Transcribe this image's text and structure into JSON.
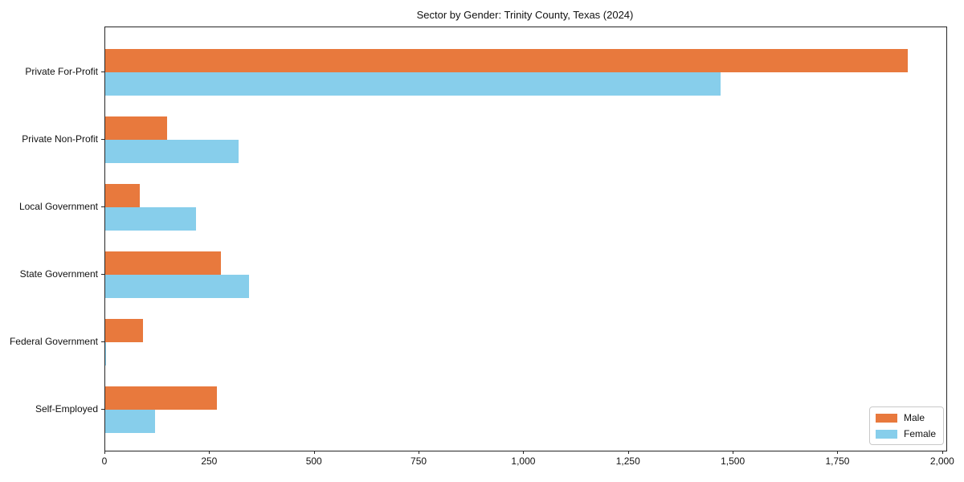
{
  "title": "Sector by Gender: Trinity County, Texas (2024)",
  "chart_data": {
    "type": "bar",
    "orientation": "horizontal",
    "title": "Sector by Gender: Trinity County, Texas (2024)",
    "categories": [
      "Private For-Profit",
      "Private Non-Profit",
      "Local Government",
      "State Government",
      "Federal Government",
      "Self-Employed"
    ],
    "series": [
      {
        "name": "Male",
        "color": "#E8793D",
        "values": [
          1915,
          148,
          82,
          277,
          91,
          267
        ]
      },
      {
        "name": "Female",
        "color": "#87CEEB",
        "values": [
          1470,
          318,
          217,
          344,
          2,
          119
        ]
      }
    ],
    "xlabel": "",
    "ylabel": "",
    "xlim": [
      0,
      2000
    ],
    "xticks": [
      0,
      250,
      500,
      750,
      1000,
      1250,
      1500,
      1750,
      2000
    ],
    "xtick_labels": [
      "0",
      "250",
      "500",
      "750",
      "1,000",
      "1,250",
      "1,500",
      "1,750",
      "2,000"
    ],
    "grid": false,
    "legend_position": "lower right"
  },
  "legend": {
    "male_label": "Male",
    "female_label": "Female"
  }
}
